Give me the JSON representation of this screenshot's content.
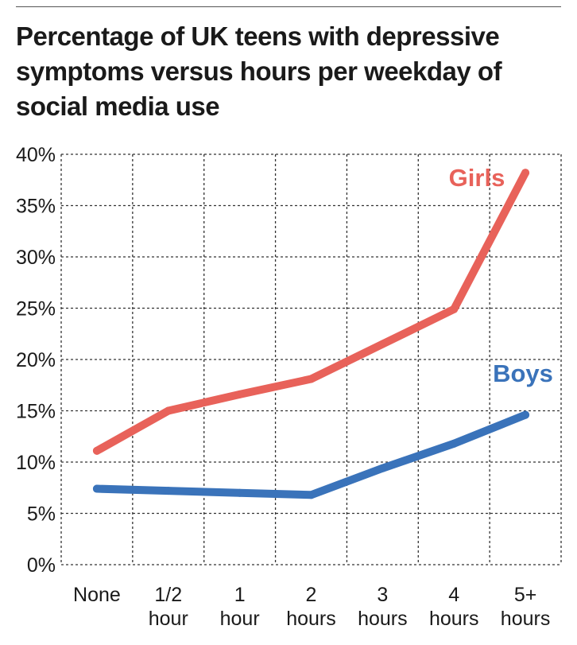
{
  "title": "Percentage of UK teens with depressive symptoms versus hours per weekday of social media use",
  "chart_data": {
    "type": "line",
    "title": "Percentage of UK teens with depressive symptoms versus hours per weekday of social media use",
    "categories": [
      [
        "None"
      ],
      [
        "1/2",
        "hour"
      ],
      [
        "1",
        "hour"
      ],
      [
        "2",
        "hours"
      ],
      [
        "3",
        "hours"
      ],
      [
        "4",
        "hours"
      ],
      [
        "5+",
        "hours"
      ]
    ],
    "yticks": [
      "0%",
      "5%",
      "10%",
      "15%",
      "20%",
      "25%",
      "30%",
      "35%",
      "40%"
    ],
    "ylim": [
      0,
      40
    ],
    "grid": true,
    "series": [
      {
        "name": "Girls",
        "color": "#e8625a",
        "values": [
          11.1,
          15.0,
          16.6,
          18.1,
          21.5,
          24.9,
          38.2
        ]
      },
      {
        "name": "Boys",
        "color": "#3a73ba",
        "values": [
          7.4,
          7.2,
          7.0,
          6.8,
          9.4,
          11.8,
          14.6
        ]
      }
    ]
  }
}
